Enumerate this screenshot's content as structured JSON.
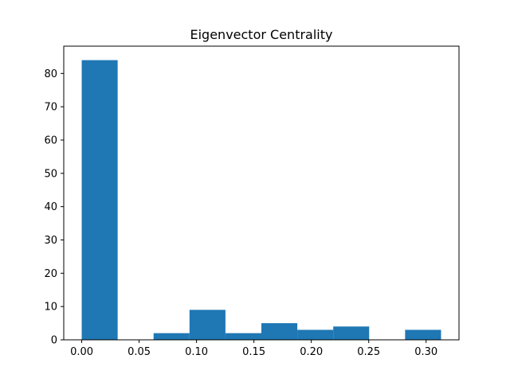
{
  "chart_data": {
    "type": "bar",
    "title": "Eigenvector Centrality",
    "xlabel": "",
    "ylabel": "",
    "bin_edges": [
      0.0,
      0.0313,
      0.0626,
      0.0939,
      0.1252,
      0.1565,
      0.1878,
      0.2191,
      0.2504,
      0.2817,
      0.313
    ],
    "values": [
      84,
      0,
      2,
      9,
      2,
      5,
      3,
      4,
      0,
      3
    ],
    "xlim": [
      -0.01565,
      0.32865
    ],
    "ylim": [
      0,
      88.2
    ],
    "xticks": [
      0.0,
      0.05,
      0.1,
      0.15,
      0.2,
      0.25,
      0.3
    ],
    "xtick_labels": [
      "0.00",
      "0.05",
      "0.10",
      "0.15",
      "0.20",
      "0.25",
      "0.30"
    ],
    "yticks": [
      0,
      10,
      20,
      30,
      40,
      50,
      60,
      70,
      80
    ],
    "ytick_labels": [
      "0",
      "10",
      "20",
      "30",
      "40",
      "50",
      "60",
      "70",
      "80"
    ],
    "bar_color": "#1f77b4",
    "grid": false,
    "legend": "none"
  }
}
